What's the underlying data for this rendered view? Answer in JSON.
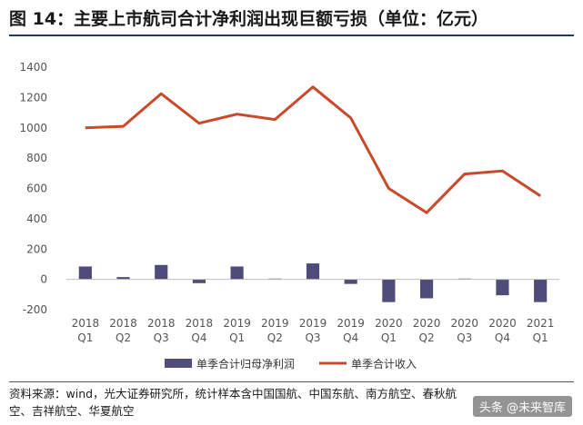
{
  "title": "图 14：主要上市航司合计净利润出现巨额亏损（单位：亿元）",
  "source": "资料来源：wind，光大证券研究所，统计样本含中国国航、中国东航、南方航空、春秋航空、吉祥航空、华夏航空",
  "watermark": "头条 @未来智库",
  "colors": {
    "bar": "#4f4c7a",
    "line": "#c94a2b",
    "rule": "#1b3a6b"
  },
  "chart_data": {
    "type": "bar+line",
    "categories": [
      [
        "2018",
        "Q1"
      ],
      [
        "2018",
        "Q2"
      ],
      [
        "2018",
        "Q3"
      ],
      [
        "2018",
        "Q4"
      ],
      [
        "2019",
        "Q1"
      ],
      [
        "2019",
        "Q2"
      ],
      [
        "2019",
        "Q3"
      ],
      [
        "2019",
        "Q4"
      ],
      [
        "2020",
        "Q1"
      ],
      [
        "2020",
        "Q2"
      ],
      [
        "2020",
        "Q3"
      ],
      [
        "2020",
        "Q4"
      ],
      [
        "2021",
        "Q1"
      ]
    ],
    "series": [
      {
        "name": "单季合计归母净利润",
        "type": "bar",
        "values": [
          85,
          15,
          95,
          -25,
          85,
          5,
          105,
          -30,
          -150,
          -125,
          5,
          -105,
          -150
        ]
      },
      {
        "name": "单季合计收入",
        "type": "line",
        "values": [
          1000,
          1010,
          1225,
          1030,
          1090,
          1055,
          1270,
          1065,
          600,
          440,
          695,
          715,
          550
        ]
      }
    ],
    "ylim": [
      -200,
      1400
    ],
    "yticks": [
      -200,
      0,
      200,
      400,
      600,
      800,
      1000,
      1200,
      1400
    ],
    "legend_position": "bottom"
  }
}
